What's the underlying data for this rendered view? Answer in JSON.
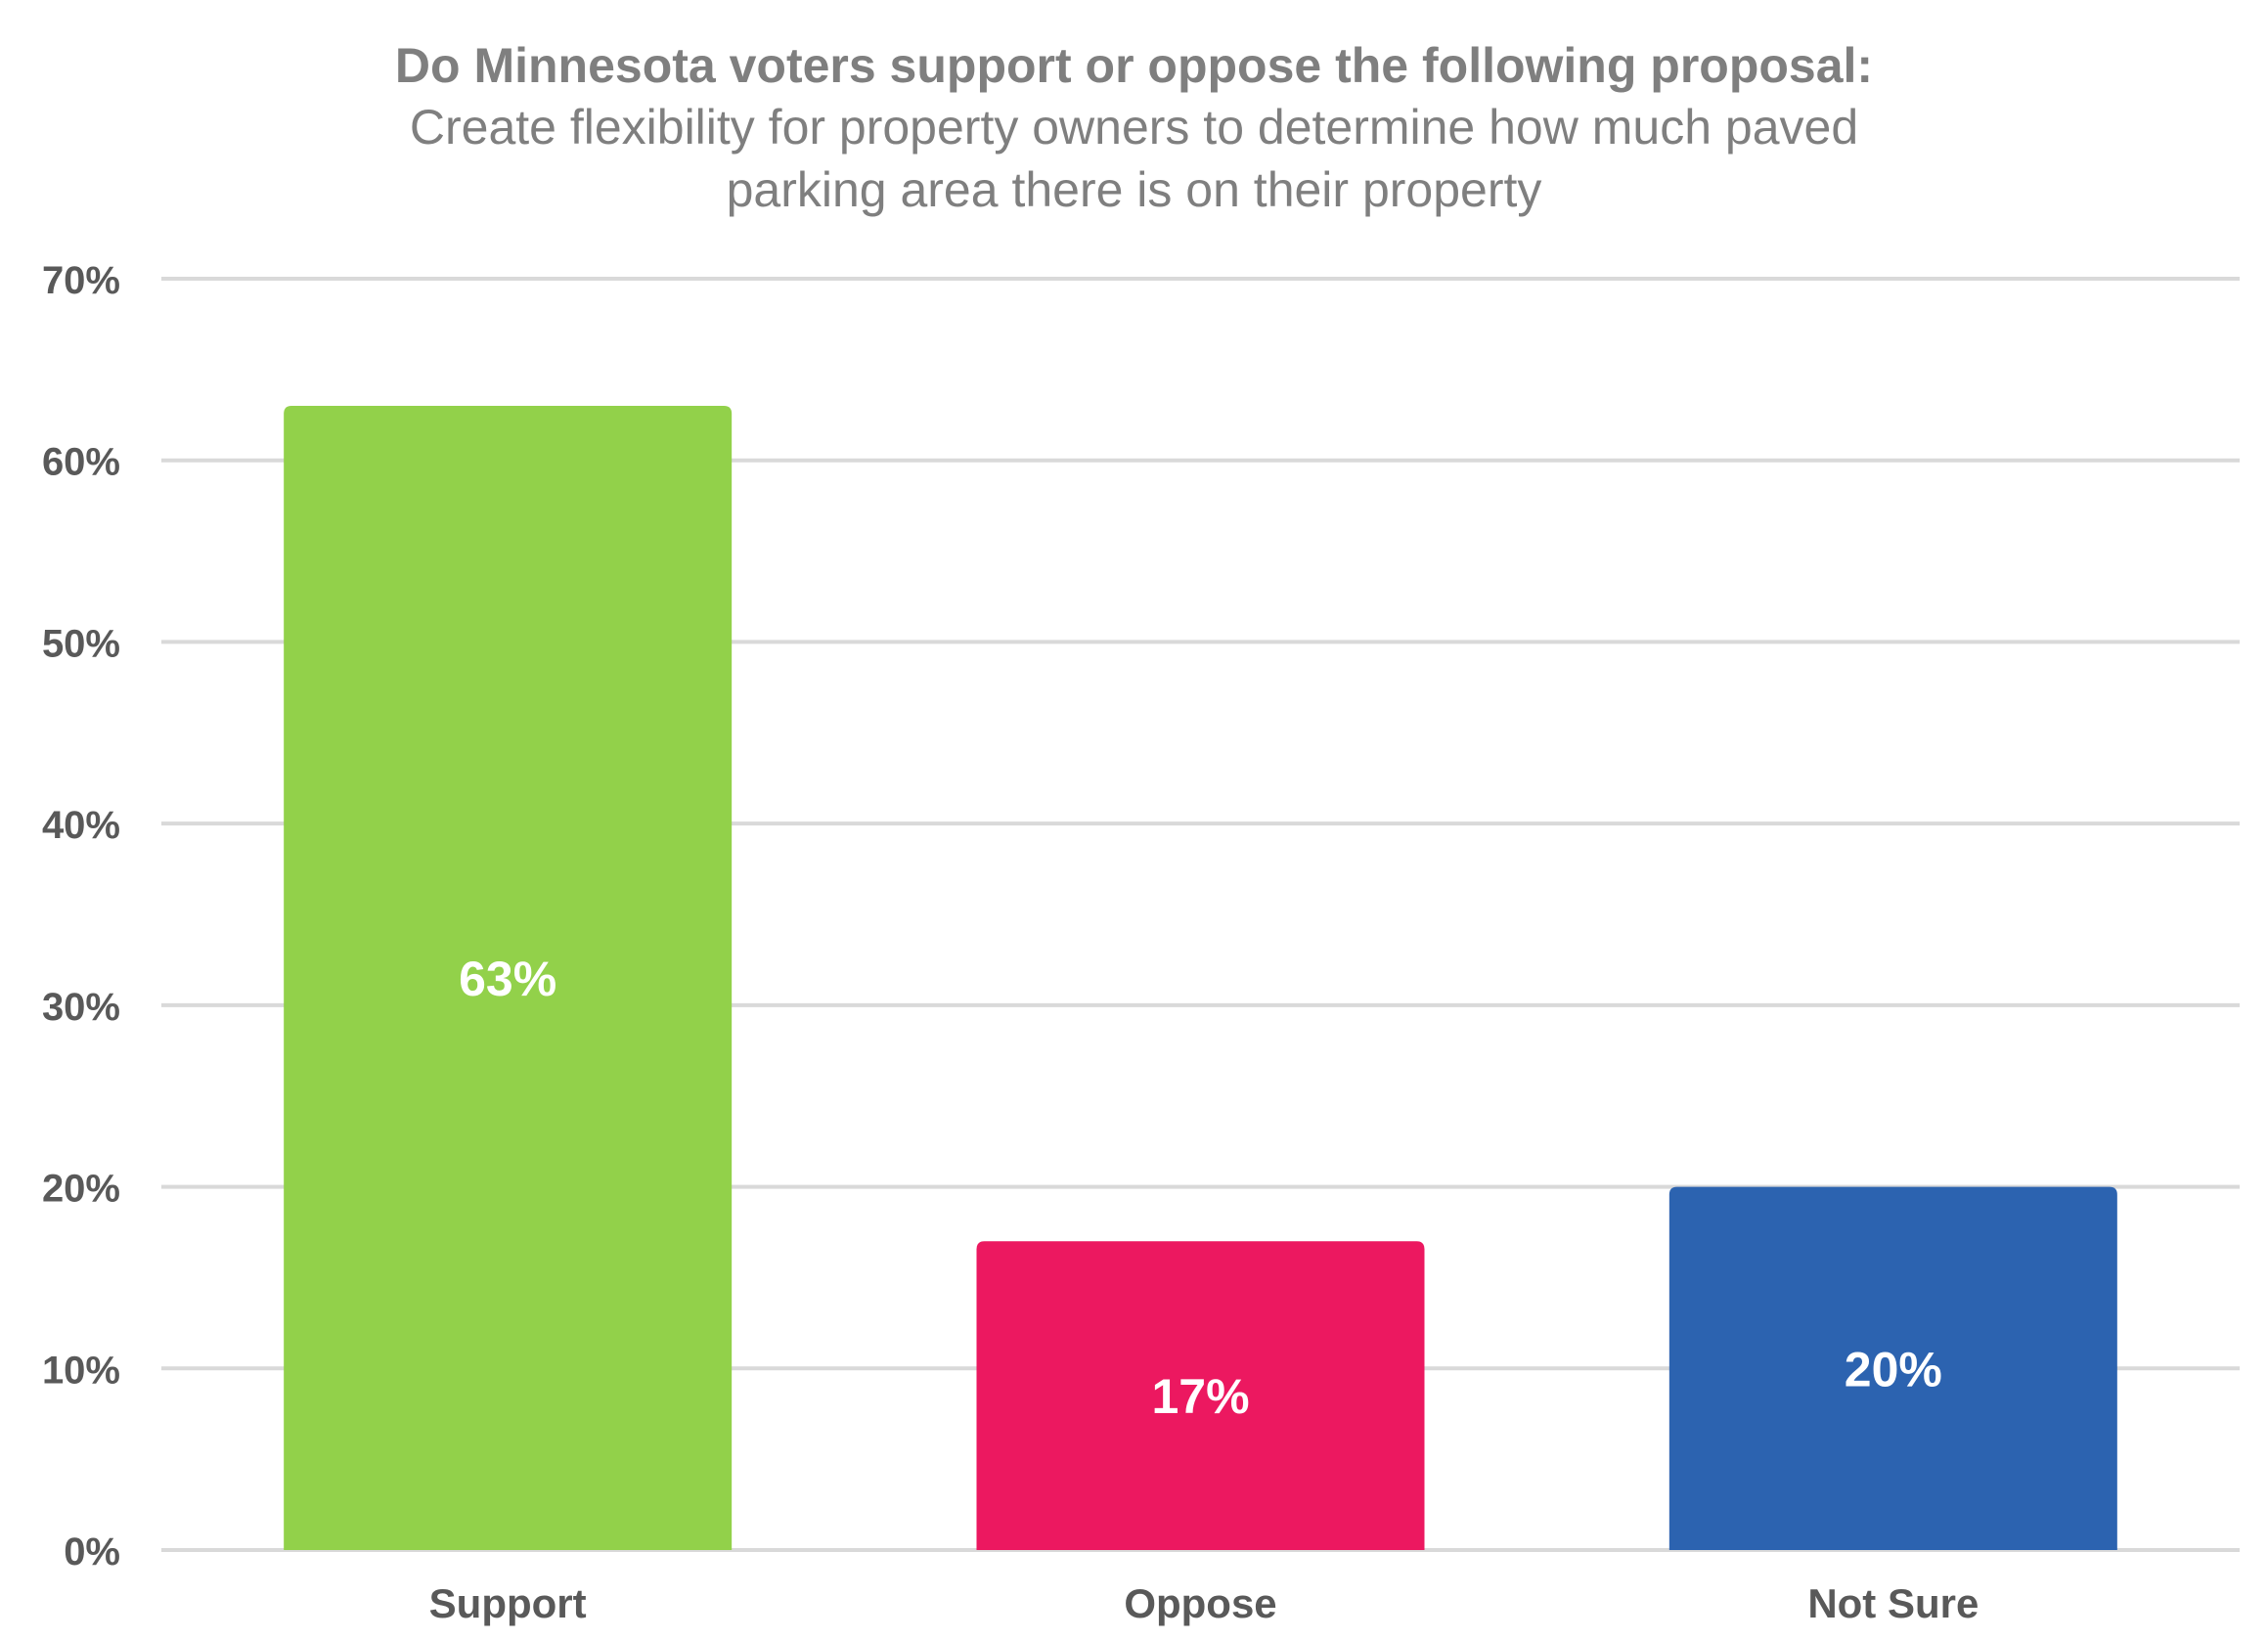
{
  "colors": {
    "support": "#92d14a",
    "oppose": "#ec1860",
    "not_sure": "#2c63b0",
    "grid": "#d9d9d9",
    "axis_text": "#595959",
    "title_text": "#7f7f7f"
  },
  "chart_data": {
    "type": "bar",
    "title": "Do Minnesota voters support or oppose the following proposal:",
    "subtitle_lines": [
      "Create flexibility for property owners to determine how much paved",
      "parking area there is on their property"
    ],
    "categories": [
      "Support",
      "Oppose",
      "Not Sure"
    ],
    "values": [
      63,
      17,
      20
    ],
    "data_labels": [
      "63%",
      "17%",
      "20%"
    ],
    "ylim": [
      0,
      70
    ],
    "yticks": [
      0,
      10,
      20,
      30,
      40,
      50,
      60,
      70
    ],
    "ytick_labels": [
      "0%",
      "10%",
      "20%",
      "30%",
      "40%",
      "50%",
      "60%",
      "70%"
    ],
    "xlabel": "",
    "ylabel": "",
    "grid": true,
    "legend": "none"
  }
}
